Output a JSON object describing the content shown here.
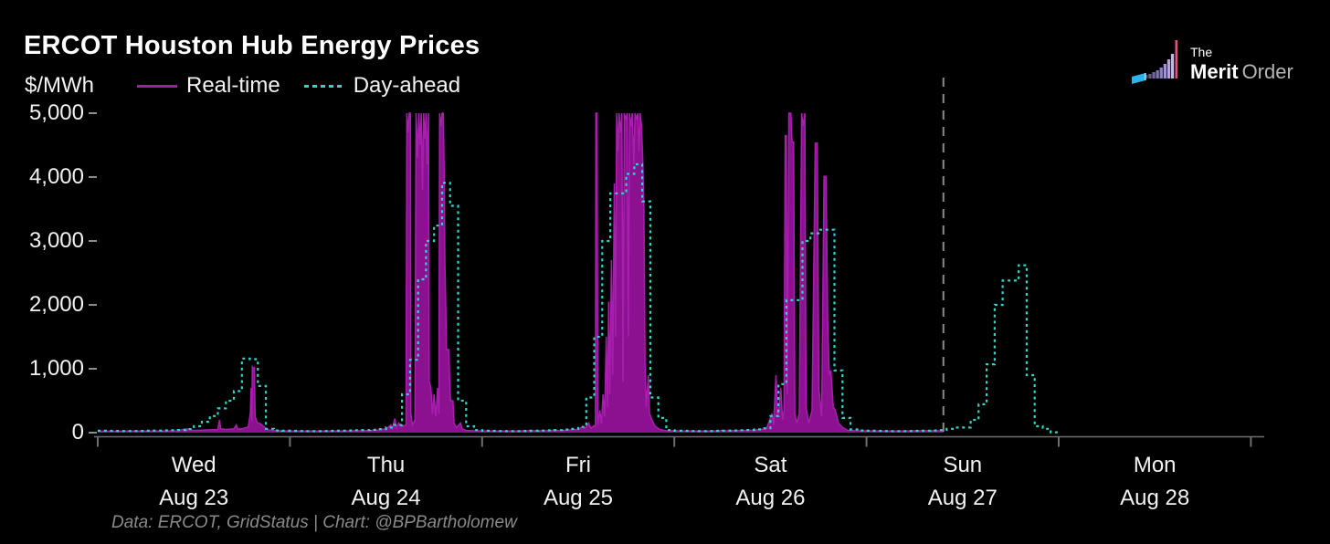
{
  "header": {
    "title": "ERCOT Houston Hub Energy Prices"
  },
  "logo": {
    "line1": "The",
    "brand_bold": "Merit",
    "brand_light": "Order",
    "icon": "merit-order-stack-icon",
    "flag_color": "#2ab5e8",
    "accent_color": "#e0557e"
  },
  "legend": {
    "units": "$/MWh",
    "items": [
      {
        "label": "Real-time",
        "style": "solid",
        "color": "#a31ea0"
      },
      {
        "label": "Day-ahead",
        "style": "dotted",
        "color": "#2fd6c8"
      }
    ]
  },
  "footer": {
    "credit": "Data: ERCOT, GridStatus | Chart: @BPBartholomew"
  },
  "chart_data": {
    "type": "line",
    "title": "ERCOT Houston Hub Energy Prices",
    "ylabel": "$/MWh",
    "ylim": [
      0,
      5000
    ],
    "grid": false,
    "legend_position": "top-left",
    "y_ticks": [
      {
        "value": 0,
        "label": "0"
      },
      {
        "value": 1000,
        "label": "1,000"
      },
      {
        "value": 2000,
        "label": "2,000"
      },
      {
        "value": 3000,
        "label": "3,000"
      },
      {
        "value": 4000,
        "label": "4,000"
      },
      {
        "value": 5000,
        "label": "5,000"
      }
    ],
    "x_ticks": [
      {
        "day": "Wed",
        "date": "Aug 23"
      },
      {
        "day": "Thu",
        "date": "Aug 24"
      },
      {
        "day": "Fri",
        "date": "Aug 25"
      },
      {
        "day": "Sat",
        "date": "Aug 26"
      },
      {
        "day": "Sun",
        "date": "Aug 27"
      },
      {
        "day": "Mon",
        "date": "Aug 28"
      }
    ],
    "x_unit": "hours from Wed Aug 23 00:00",
    "x_range_hours": [
      0,
      144
    ],
    "now_marker_hour": 105.6,
    "now_marker_color": "#8c8c8c",
    "series": [
      {
        "name": "Real-time",
        "style": "solid",
        "color": "#a81fae",
        "fill": "#8b1190",
        "points": [
          [
            0,
            25
          ],
          [
            2,
            22
          ],
          [
            4,
            24
          ],
          [
            6,
            25
          ],
          [
            8,
            26
          ],
          [
            10,
            28
          ],
          [
            11,
            60
          ],
          [
            12,
            35
          ],
          [
            13,
            40
          ],
          [
            14,
            45
          ],
          [
            15,
            50
          ],
          [
            15.2,
            200
          ],
          [
            15.35,
            60
          ],
          [
            16,
            50
          ],
          [
            17,
            60
          ],
          [
            17.3,
            120
          ],
          [
            17.5,
            55
          ],
          [
            18,
            60
          ],
          [
            18.8,
            90
          ],
          [
            19.05,
            300
          ],
          [
            19.15,
            700
          ],
          [
            19.25,
            180
          ],
          [
            19.3,
            1030
          ],
          [
            19.5,
            1000
          ],
          [
            19.55,
            1030
          ],
          [
            19.65,
            250
          ],
          [
            19.9,
            160
          ],
          [
            20.3,
            140
          ],
          [
            20.8,
            90
          ],
          [
            21.2,
            45
          ],
          [
            22,
            32
          ],
          [
            23,
            28
          ],
          [
            24,
            26
          ],
          [
            26,
            24
          ],
          [
            28,
            25
          ],
          [
            30,
            26
          ],
          [
            32,
            28
          ],
          [
            34,
            32
          ],
          [
            35,
            40
          ],
          [
            36,
            60
          ],
          [
            36.6,
            120
          ],
          [
            36.8,
            60
          ],
          [
            37.1,
            220
          ],
          [
            37.3,
            80
          ],
          [
            37.6,
            150
          ],
          [
            37.9,
            90
          ],
          [
            38.5,
            120
          ],
          [
            38.6,
            5000
          ],
          [
            38.75,
            4700
          ],
          [
            38.9,
            5000
          ],
          [
            39.05,
            5000
          ],
          [
            39.1,
            300
          ],
          [
            39.3,
            120
          ],
          [
            39.6,
            200
          ],
          [
            39.75,
            5000
          ],
          [
            39.95,
            4300
          ],
          [
            40.1,
            5000
          ],
          [
            40.25,
            4500
          ],
          [
            40.4,
            5000
          ],
          [
            40.55,
            3800
          ],
          [
            40.7,
            5000
          ],
          [
            40.85,
            4600
          ],
          [
            41.0,
            5000
          ],
          [
            41.15,
            4200
          ],
          [
            41.3,
            5000
          ],
          [
            41.4,
            800
          ],
          [
            41.6,
            700
          ],
          [
            41.8,
            300
          ],
          [
            42.0,
            600
          ],
          [
            42.2,
            250
          ],
          [
            42.45,
            700
          ],
          [
            42.6,
            300
          ],
          [
            42.7,
            5000
          ],
          [
            42.85,
            4800
          ],
          [
            43.0,
            5000
          ],
          [
            43.15,
            5000
          ],
          [
            43.25,
            4150
          ],
          [
            43.35,
            2700
          ],
          [
            43.45,
            2050
          ],
          [
            43.55,
            1300
          ],
          [
            43.85,
            1300
          ],
          [
            43.95,
            800
          ],
          [
            44.05,
            500
          ],
          [
            44.35,
            500
          ],
          [
            44.5,
            150
          ],
          [
            44.8,
            80
          ],
          [
            45.3,
            150
          ],
          [
            45.5,
            60
          ],
          [
            46,
            35
          ],
          [
            47,
            30
          ],
          [
            48,
            28
          ],
          [
            50,
            25
          ],
          [
            52,
            26
          ],
          [
            54,
            28
          ],
          [
            56,
            30
          ],
          [
            58,
            35
          ],
          [
            60,
            50
          ],
          [
            60.5,
            90
          ],
          [
            60.8,
            60
          ],
          [
            61.3,
            150
          ],
          [
            61.6,
            70
          ],
          [
            62.0,
            110
          ],
          [
            62.15,
            100
          ],
          [
            62.2,
            5000
          ],
          [
            62.35,
            5000
          ],
          [
            62.45,
            130
          ],
          [
            62.7,
            350
          ],
          [
            62.9,
            140
          ],
          [
            63.1,
            600
          ],
          [
            63.3,
            250
          ],
          [
            63.5,
            1500
          ],
          [
            63.65,
            400
          ],
          [
            63.8,
            2050
          ],
          [
            63.95,
            600
          ],
          [
            64.15,
            2700
          ],
          [
            64.3,
            900
          ],
          [
            64.5,
            3900
          ],
          [
            64.65,
            1500
          ],
          [
            64.8,
            5000
          ],
          [
            64.95,
            4400
          ],
          [
            65.1,
            5000
          ],
          [
            65.3,
            4700
          ],
          [
            65.45,
            5000
          ],
          [
            65.6,
            800
          ],
          [
            65.75,
            5000
          ],
          [
            65.95,
            4900
          ],
          [
            66.1,
            5000
          ],
          [
            66.25,
            1500
          ],
          [
            66.4,
            5000
          ],
          [
            66.6,
            4800
          ],
          [
            66.75,
            5000
          ],
          [
            66.95,
            4200
          ],
          [
            67.1,
            5000
          ],
          [
            67.3,
            4900
          ],
          [
            67.45,
            5000
          ],
          [
            67.6,
            4400
          ],
          [
            67.75,
            5000
          ],
          [
            67.9,
            4800
          ],
          [
            68.05,
            4300
          ],
          [
            68.2,
            3500
          ],
          [
            68.35,
            1000
          ],
          [
            68.5,
            400
          ],
          [
            68.75,
            900
          ],
          [
            68.9,
            300
          ],
          [
            69.2,
            200
          ],
          [
            69.6,
            100
          ],
          [
            70.2,
            50
          ],
          [
            71,
            30
          ],
          [
            72,
            28
          ],
          [
            74,
            25
          ],
          [
            76,
            26
          ],
          [
            78,
            28
          ],
          [
            80,
            32
          ],
          [
            82,
            38
          ],
          [
            83.5,
            60
          ],
          [
            84.2,
            300
          ],
          [
            84.4,
            120
          ],
          [
            84.7,
            900
          ],
          [
            84.9,
            250
          ],
          [
            85.1,
            400
          ],
          [
            85.3,
            700
          ],
          [
            85.5,
            200
          ],
          [
            85.7,
            350
          ],
          [
            85.85,
            4650
          ],
          [
            86.0,
            4650
          ],
          [
            86.1,
            600
          ],
          [
            86.3,
            5000
          ],
          [
            86.55,
            5000
          ],
          [
            86.7,
            4550
          ],
          [
            86.9,
            4550
          ],
          [
            87.05,
            300
          ],
          [
            87.3,
            150
          ],
          [
            87.6,
            300
          ],
          [
            87.9,
            5000
          ],
          [
            88.1,
            4800
          ],
          [
            88.3,
            5000
          ],
          [
            88.45,
            400
          ],
          [
            88.8,
            150
          ],
          [
            89.2,
            350
          ],
          [
            89.6,
            4530
          ],
          [
            89.85,
            4530
          ],
          [
            90.05,
            700
          ],
          [
            90.4,
            250
          ],
          [
            90.7,
            4010
          ],
          [
            90.95,
            4010
          ],
          [
            91.15,
            1760
          ],
          [
            91.35,
            900
          ],
          [
            91.55,
            975
          ],
          [
            91.85,
            400
          ],
          [
            92.1,
            350
          ],
          [
            92.5,
            150
          ],
          [
            93.0,
            80
          ],
          [
            93.6,
            40
          ],
          [
            94.5,
            30
          ],
          [
            96,
            28
          ],
          [
            98,
            25
          ],
          [
            100,
            26
          ],
          [
            102,
            28
          ],
          [
            104,
            30
          ],
          [
            105,
            28
          ],
          [
            105.6,
            28
          ]
        ]
      },
      {
        "name": "Day-ahead",
        "style": "dotted",
        "color": "#2fd6c8",
        "step": "hourly",
        "start_hour": 0,
        "values": [
          30,
          28,
          27,
          26,
          26,
          27,
          30,
          33,
          36,
          38,
          42,
          55,
          100,
          170,
          260,
          380,
          500,
          650,
          1160,
          1150,
          730,
          60,
          35,
          30,
          28,
          26,
          25,
          25,
          26,
          28,
          32,
          35,
          38,
          40,
          45,
          55,
          80,
          120,
          600,
          1140,
          2400,
          3000,
          3240,
          3910,
          3550,
          500,
          100,
          40,
          30,
          28,
          26,
          25,
          25,
          27,
          30,
          33,
          36,
          40,
          48,
          58,
          90,
          550,
          1500,
          3000,
          3745,
          3745,
          4050,
          4200,
          3620,
          550,
          230,
          40,
          30,
          28,
          26,
          25,
          26,
          28,
          31,
          34,
          38,
          42,
          52,
          68,
          260,
          760,
          2075,
          2075,
          3000,
          3120,
          3175,
          3175,
          975,
          230,
          50,
          35,
          30,
          28,
          26,
          25,
          25,
          26,
          28,
          31,
          35,
          40,
          60,
          80,
          80,
          200,
          445,
          1070,
          2000,
          2380,
          2380,
          2620,
          900,
          100,
          60,
          5
        ]
      }
    ]
  }
}
